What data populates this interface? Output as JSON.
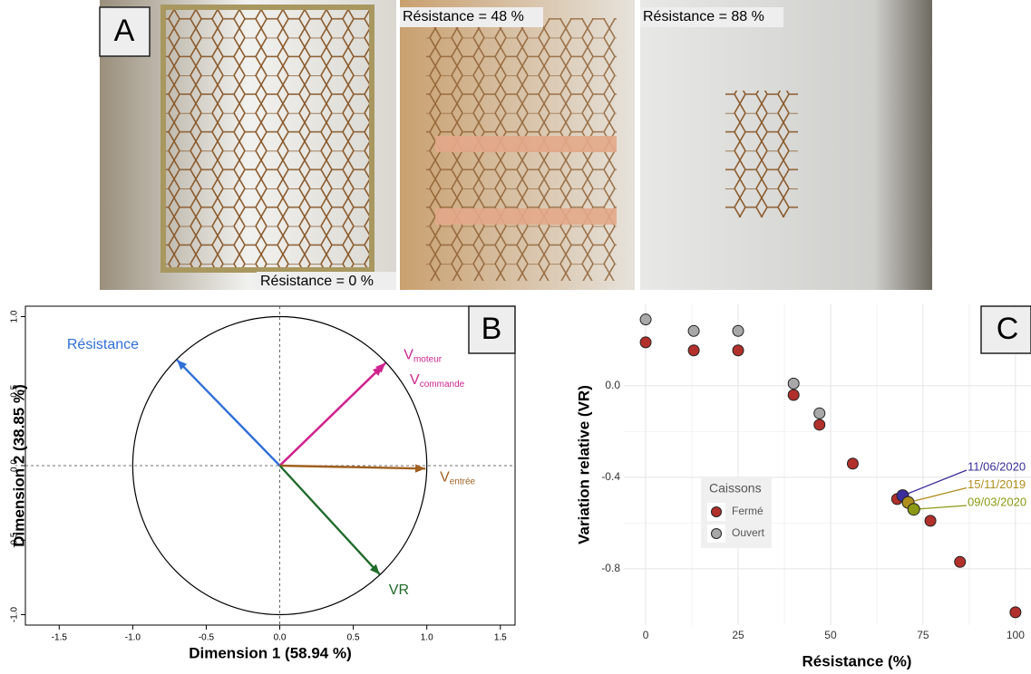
{
  "photos": {
    "label": "A",
    "captions": [
      "Résistance = 0 %",
      "Résistance = 48 %",
      "Résistance = 88 %"
    ]
  },
  "chart_data": [
    {
      "type": "vector",
      "panel": "B",
      "xlabel": "Dimension 1 (58.94 %)",
      "ylabel": "Dimension 2 (38.85 %)",
      "xlim": [
        -1.73,
        1.6
      ],
      "ylim": [
        -1.07,
        1.07
      ],
      "xticks": [
        -1.5,
        {
          "value": -1,
          "label": "-1.0"
        },
        -0.5,
        {
          "value": 0,
          "label": "0.0"
        },
        0.5,
        {
          "value": 1,
          "label": "1.0"
        },
        1.5
      ],
      "yticks": [
        {
          "value": -1,
          "label": "-1.0"
        },
        -0.5,
        {
          "value": 0,
          "label": "0.0"
        },
        0.5,
        {
          "value": 1,
          "label": "1.0"
        }
      ],
      "vectors": [
        {
          "name": "Résistance",
          "color": "#2f6fd6",
          "x": -0.7,
          "y": 0.71
        },
        {
          "name": "V",
          "sub": "moteur",
          "color": "#d0258f",
          "x": 0.72,
          "y": 0.69
        },
        {
          "name": "V",
          "sub": "commande",
          "color": "#d0258f",
          "x": 0.7,
          "y": 0.67
        },
        {
          "name": "V",
          "sub": "entrée",
          "color": "#a0601f",
          "x": 0.99,
          "y": -0.02
        },
        {
          "name": "VR",
          "color": "#1f6a2a",
          "x": 0.68,
          "y": -0.73
        }
      ]
    },
    {
      "type": "scatter",
      "panel": "C",
      "xlabel": "Résistance (%)",
      "ylabel": "Variation relative (VR)",
      "xlim": [
        -5.9,
        104.2
      ],
      "ylim": [
        -1.046,
        0.356
      ],
      "xticks": [
        0,
        25,
        50,
        75,
        100
      ],
      "yticks": [
        -0.8,
        -0.4,
        {
          "value": 0,
          "label": "0.0"
        }
      ],
      "grid": true,
      "legend_title": "Caissons",
      "series": [
        {
          "name": "Fermé",
          "color": "#b2302b",
          "x": [
            0,
            13,
            25,
            40,
            47,
            56,
            68,
            77,
            85,
            100
          ],
          "values": [
            0.19,
            0.155,
            0.155,
            -0.04,
            -0.17,
            -0.34,
            -0.495,
            -0.59,
            -0.77,
            -0.99
          ]
        },
        {
          "name": "Ouvert",
          "color": "#a8a8a8",
          "x": [
            0,
            13,
            25,
            40,
            47
          ],
          "values": [
            0.29,
            0.24,
            0.24,
            0.01,
            -0.12
          ]
        }
      ],
      "annotated_points": [
        {
          "name": "11/06/2020",
          "color": "#3b2e9a",
          "x": 69.5,
          "value": -0.48
        },
        {
          "name": "15/11/2019",
          "color": "#b08f1e",
          "x": 71,
          "value": -0.51
        },
        {
          "name": "09/03/2020",
          "color": "#8b9a12",
          "x": 72.5,
          "value": -0.54
        }
      ]
    }
  ]
}
